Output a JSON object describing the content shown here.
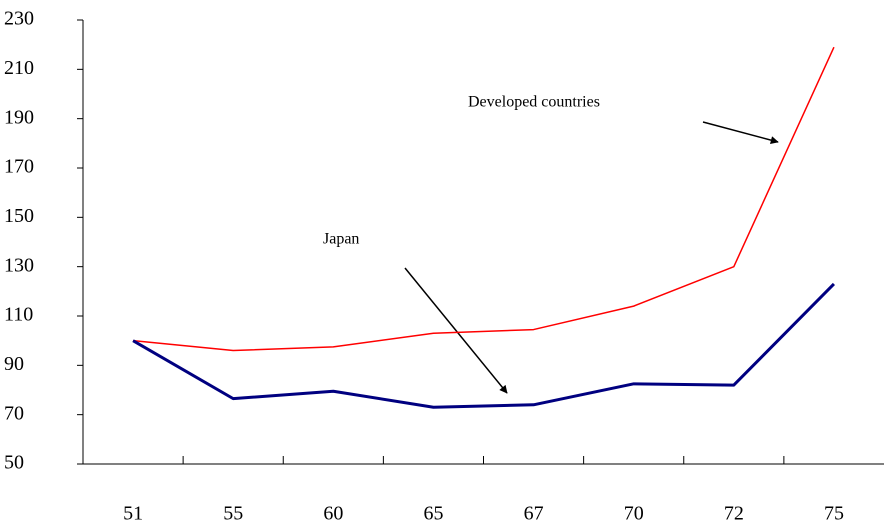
{
  "chart_data": {
    "type": "line",
    "categories": [
      "51",
      "55",
      "60",
      "65",
      "67",
      "70",
      "72",
      "75"
    ],
    "series": [
      {
        "name": "Developed countries",
        "color": "#ff0000",
        "values": [
          100,
          96,
          97.5,
          103,
          104.5,
          114,
          130,
          219
        ]
      },
      {
        "name": "Japan",
        "color": "#000080",
        "values": [
          100,
          76.5,
          79.5,
          73,
          74,
          82.5,
          82,
          123
        ]
      }
    ],
    "ylim": [
      50,
      230
    ],
    "yticks": [
      50,
      70,
      90,
      110,
      130,
      150,
      170,
      190,
      210,
      230
    ],
    "grid": false
  }
}
